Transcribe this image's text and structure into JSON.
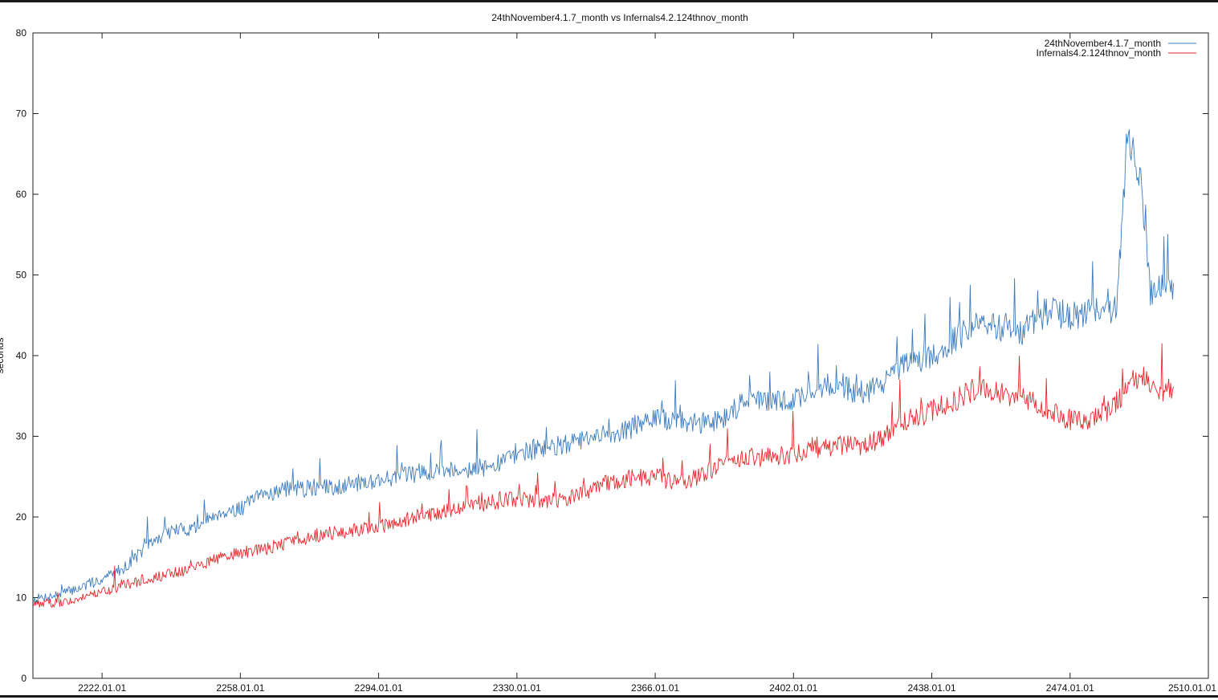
{
  "chart_data": {
    "type": "line",
    "title": "24thNovember4.1.7_month vs Infernals4.2.124thnov_month",
    "ylabel": "seconds",
    "xlabel": "",
    "xlim": [
      "2204.01.01",
      "2510.01.01"
    ],
    "ylim": [
      0,
      80
    ],
    "x_ticks": [
      "2222.01.01",
      "2258.01.01",
      "2294.01.01",
      "2330.01.01",
      "2366.01.01",
      "2402.01.01",
      "2438.01.01",
      "2474.01.01",
      "2510.01.01"
    ],
    "y_ticks": [
      0,
      10,
      20,
      30,
      40,
      50,
      60,
      70,
      80
    ],
    "legend_position": "top-right",
    "grid": false,
    "series": [
      {
        "name": "24thNovember4.1.7_month",
        "color": "#3b7bbf",
        "x": [
          "2204.01.01",
          "2210.01.01",
          "2216.01.01",
          "2222.01.01",
          "2228.01.01",
          "2234.01.01",
          "2240.01.01",
          "2246.01.01",
          "2252.01.01",
          "2258.01.01",
          "2264.01.01",
          "2270.01.01",
          "2276.01.01",
          "2282.01.01",
          "2288.01.01",
          "2294.01.01",
          "2300.01.01",
          "2306.01.01",
          "2312.01.01",
          "2318.01.01",
          "2324.01.01",
          "2330.01.01",
          "2336.01.01",
          "2342.01.01",
          "2348.01.01",
          "2354.01.01",
          "2360.01.01",
          "2366.01.01",
          "2372.01.01",
          "2378.01.01",
          "2384.01.01",
          "2390.01.01",
          "2396.01.01",
          "2402.01.01",
          "2408.01.01",
          "2414.01.01",
          "2420.01.01",
          "2426.01.01",
          "2432.01.01",
          "2438.01.01",
          "2444.01.01",
          "2450.01.01",
          "2456.01.01",
          "2462.01.01",
          "2468.01.01",
          "2474.01.01",
          "2480.01.01",
          "2486.01.01",
          "2489.01.01",
          "2492.01.01",
          "2495.01.01",
          "2498.01.01",
          "2501.01.01"
        ],
        "values": [
          9.8,
          10.3,
          11.2,
          12.3,
          13.8,
          16.5,
          18.3,
          18.6,
          20.5,
          21.0,
          22.8,
          23.5,
          23.5,
          23.7,
          24.2,
          24.6,
          25.1,
          25.6,
          25.9,
          26.0,
          26.2,
          28.0,
          28.4,
          28.9,
          29.5,
          30.3,
          31.0,
          32.2,
          31.8,
          31.6,
          32.3,
          34.8,
          34.2,
          34.5,
          36.0,
          36.5,
          35.0,
          37.0,
          39.0,
          40.0,
          42.0,
          44.0,
          43.5,
          43.0,
          45.5,
          45.0,
          45.5,
          45.6,
          68.0,
          63.0,
          47.5,
          48.5,
          47.5
        ]
      },
      {
        "name": "Infernals4.2.124thnov_month",
        "color": "#e8262b",
        "x": [
          "2204.01.01",
          "2210.01.01",
          "2216.01.01",
          "2222.01.01",
          "2228.01.01",
          "2234.01.01",
          "2240.01.01",
          "2246.01.01",
          "2252.01.01",
          "2258.01.01",
          "2264.01.01",
          "2270.01.01",
          "2276.01.01",
          "2282.01.01",
          "2288.01.01",
          "2294.01.01",
          "2300.01.01",
          "2306.01.01",
          "2312.01.01",
          "2318.01.01",
          "2324.01.01",
          "2330.01.01",
          "2336.01.01",
          "2342.01.01",
          "2348.01.01",
          "2354.01.01",
          "2360.01.01",
          "2366.01.01",
          "2372.01.01",
          "2378.01.01",
          "2384.01.01",
          "2390.01.01",
          "2396.01.01",
          "2402.01.01",
          "2408.01.01",
          "2414.01.01",
          "2420.01.01",
          "2426.01.01",
          "2432.01.01",
          "2438.01.01",
          "2444.01.01",
          "2450.01.01",
          "2456.01.01",
          "2462.01.01",
          "2468.01.01",
          "2474.01.01",
          "2480.01.01",
          "2486.01.01",
          "2489.01.01",
          "2492.01.01",
          "2495.01.01",
          "2498.01.01",
          "2501.01.01"
        ],
        "values": [
          9.2,
          9.4,
          9.8,
          10.6,
          11.6,
          12.4,
          12.9,
          13.8,
          14.9,
          15.5,
          16.0,
          16.8,
          17.6,
          18.0,
          18.4,
          18.8,
          19.6,
          20.2,
          20.8,
          21.5,
          21.9,
          22.2,
          22.0,
          22.0,
          23.0,
          24.3,
          24.8,
          25.0,
          24.2,
          25.0,
          26.8,
          27.3,
          27.5,
          27.8,
          28.3,
          28.8,
          28.8,
          30.0,
          32.0,
          33.0,
          34.5,
          36.0,
          35.5,
          34.5,
          33.5,
          32.0,
          32.0,
          34.0,
          36.5,
          37.5,
          36.5,
          35.8,
          35.6
        ]
      }
    ]
  }
}
